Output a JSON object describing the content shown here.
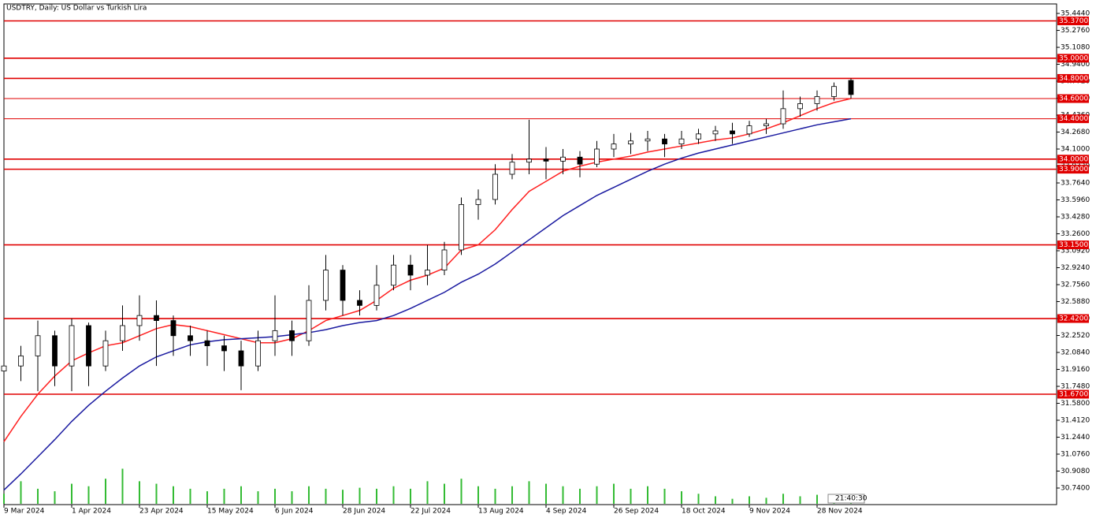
{
  "chart_data": {
    "type": "candlestick",
    "title": "USDTRY, Daily:  US Dollar vs Turkish Lira",
    "time_label": "21:40:30",
    "categories": [
      "9 Mar 2024",
      null,
      null,
      null,
      "1 Apr 2024",
      null,
      null,
      null,
      "23 Apr 2024",
      null,
      null,
      null,
      "15 May 2024",
      null,
      null,
      null,
      "6 Jun 2024",
      null,
      null,
      null,
      "28 Jun 2024",
      null,
      null,
      null,
      "22 Jul 2024",
      null,
      null,
      null,
      "13 Aug 2024",
      null,
      null,
      null,
      "4 Sep 2024",
      null,
      null,
      null,
      "26 Sep 2024",
      null,
      null,
      null,
      "18 Oct 2024",
      null,
      null,
      null,
      "9 Nov 2024",
      null,
      null,
      null,
      "28 Nov 2024",
      null,
      null
    ],
    "open": [
      31.9,
      31.95,
      32.05,
      32.25,
      31.95,
      32.35,
      31.95,
      32.2,
      32.35,
      32.45,
      32.4,
      32.25,
      32.2,
      32.15,
      32.1,
      31.95,
      32.2,
      32.3,
      32.2,
      32.6,
      32.9,
      32.6,
      32.55,
      32.75,
      32.95,
      32.85,
      32.9,
      33.1,
      33.55,
      33.6,
      33.85,
      33.97,
      34.0,
      33.98,
      34.02,
      33.95,
      34.1,
      34.15,
      34.18,
      34.2,
      34.15,
      34.2,
      34.25,
      34.28,
      34.25,
      34.33,
      34.35,
      34.5,
      34.55,
      34.62,
      34.78
    ],
    "high": [
      32.0,
      32.15,
      32.4,
      32.3,
      32.42,
      32.38,
      32.3,
      32.55,
      32.65,
      32.6,
      32.45,
      32.35,
      32.3,
      32.25,
      32.2,
      32.3,
      32.65,
      32.4,
      32.75,
      33.05,
      32.95,
      32.7,
      32.95,
      33.05,
      33.05,
      33.15,
      33.18,
      33.62,
      33.7,
      33.95,
      34.05,
      34.39,
      34.12,
      34.1,
      34.08,
      34.18,
      34.25,
      34.26,
      34.28,
      34.25,
      34.28,
      34.3,
      34.33,
      34.36,
      34.38,
      34.4,
      34.68,
      34.62,
      34.68,
      34.76,
      34.8
    ],
    "low": [
      31.85,
      31.8,
      31.7,
      31.75,
      31.7,
      31.75,
      31.9,
      32.1,
      32.2,
      31.95,
      32.05,
      32.05,
      31.95,
      31.9,
      31.71,
      31.9,
      32.05,
      32.05,
      32.15,
      32.5,
      32.45,
      32.45,
      32.5,
      32.7,
      32.7,
      32.75,
      32.85,
      33.05,
      33.4,
      33.55,
      33.8,
      33.85,
      33.8,
      33.85,
      33.82,
      33.92,
      34.02,
      34.05,
      34.08,
      34.02,
      34.1,
      34.15,
      34.18,
      34.15,
      34.22,
      34.25,
      34.3,
      34.42,
      34.48,
      34.58,
      34.6
    ],
    "close": [
      31.95,
      32.05,
      32.25,
      31.95,
      32.35,
      31.95,
      32.2,
      32.35,
      32.45,
      32.4,
      32.25,
      32.2,
      32.15,
      32.1,
      31.95,
      32.2,
      32.3,
      32.2,
      32.6,
      32.9,
      32.6,
      32.55,
      32.75,
      32.95,
      32.85,
      32.9,
      33.1,
      33.55,
      33.6,
      33.85,
      33.97,
      34.0,
      33.98,
      34.02,
      33.95,
      34.1,
      34.15,
      34.18,
      34.2,
      34.15,
      34.2,
      34.25,
      34.28,
      34.25,
      34.33,
      34.35,
      34.5,
      34.55,
      34.62,
      34.72,
      34.64
    ],
    "series": [
      {
        "color": "#ff2020",
        "values": [
          31.2,
          31.45,
          31.67,
          31.85,
          32.0,
          32.08,
          32.15,
          32.18,
          32.25,
          32.32,
          32.36,
          32.34,
          32.3,
          32.26,
          32.22,
          32.18,
          32.18,
          32.22,
          32.3,
          32.4,
          32.45,
          32.5,
          32.6,
          32.72,
          32.8,
          32.85,
          32.92,
          33.1,
          33.15,
          33.3,
          33.5,
          33.68,
          33.78,
          33.88,
          33.93,
          33.97,
          34.0,
          34.03,
          34.07,
          34.1,
          34.13,
          34.16,
          34.19,
          34.21,
          34.25,
          34.3,
          34.36,
          34.43,
          34.5,
          34.56,
          34.6
        ]
      },
      {
        "color": "#1a1aa0",
        "values": [
          30.72,
          30.88,
          31.05,
          31.22,
          31.4,
          31.56,
          31.7,
          31.83,
          31.95,
          32.04,
          32.1,
          32.16,
          32.19,
          32.21,
          32.22,
          32.23,
          32.24,
          32.26,
          32.28,
          32.31,
          32.35,
          32.38,
          32.4,
          32.45,
          32.52,
          32.6,
          32.68,
          32.78,
          32.86,
          32.96,
          33.08,
          33.2,
          33.32,
          33.44,
          33.54,
          33.64,
          33.72,
          33.8,
          33.88,
          33.95,
          34.01,
          34.06,
          34.1,
          34.14,
          34.18,
          34.22,
          34.26,
          34.3,
          34.34,
          34.37,
          34.4
        ]
      }
    ],
    "volume": [
      20,
      45,
      30,
      25,
      40,
      35,
      50,
      70,
      45,
      40,
      35,
      30,
      25,
      30,
      35,
      25,
      30,
      25,
      35,
      30,
      28,
      32,
      30,
      35,
      30,
      45,
      40,
      50,
      35,
      30,
      35,
      45,
      40,
      35,
      30,
      35,
      40,
      30,
      35,
      30,
      25,
      20,
      15,
      10,
      15,
      12,
      20,
      15,
      18,
      15,
      12
    ],
    "volume_color": "#33bb33",
    "volume_ylim": [
      0,
      110
    ],
    "levels": [
      {
        "value": 35.37,
        "label": "35.3700"
      },
      {
        "value": 35.0,
        "label": "35.0000"
      },
      {
        "value": 34.8,
        "label": "34.8000"
      },
      {
        "value": 34.6,
        "label": "34.6000"
      },
      {
        "value": 34.4,
        "label": "34.4000"
      },
      {
        "value": 34.0,
        "label": "34.0000"
      },
      {
        "value": 33.9,
        "label": "33.9000"
      },
      {
        "value": 33.15,
        "label": "33.1500"
      },
      {
        "value": 32.42,
        "label": "32.4200"
      },
      {
        "value": 31.67,
        "label": "31.6700"
      }
    ],
    "level_color": "#e00000",
    "ylim": [
      30.576,
      35.538
    ],
    "yticks": [
      {
        "value": 35.444,
        "label": "35.4440"
      },
      {
        "value": 35.276,
        "label": "35.2760"
      },
      {
        "value": 35.108,
        "label": "35.1080"
      },
      {
        "value": 34.94,
        "label": "34.9400"
      },
      {
        "value": 34.772,
        "label": "34.7720"
      },
      {
        "value": 34.604,
        "label": "34.6040"
      },
      {
        "value": 34.436,
        "label": "34.4360"
      },
      {
        "value": 34.268,
        "label": "34.2680"
      },
      {
        "value": 34.1,
        "label": "34.1000"
      },
      {
        "value": 33.932,
        "label": "33.9320"
      },
      {
        "value": 33.764,
        "label": "33.7640"
      },
      {
        "value": 33.596,
        "label": "33.5960"
      },
      {
        "value": 33.428,
        "label": "33.4280"
      },
      {
        "value": 33.26,
        "label": "33.2600"
      },
      {
        "value": 33.092,
        "label": "33.0920"
      },
      {
        "value": 32.924,
        "label": "32.9240"
      },
      {
        "value": 32.756,
        "label": "32.7560"
      },
      {
        "value": 32.588,
        "label": "32.5880"
      },
      {
        "value": 32.42,
        "label": "32.4200"
      },
      {
        "value": 32.252,
        "label": "32.2520"
      },
      {
        "value": 32.084,
        "label": "32.0840"
      },
      {
        "value": 31.916,
        "label": "31.9160"
      },
      {
        "value": 31.748,
        "label": "31.7480"
      },
      {
        "value": 31.58,
        "label": "31.5800"
      },
      {
        "value": 31.412,
        "label": "31.4120"
      },
      {
        "value": 31.244,
        "label": "31.2440"
      },
      {
        "value": 31.076,
        "label": "31.0760"
      },
      {
        "value": 30.908,
        "label": "30.9080"
      },
      {
        "value": 30.74,
        "label": "30.7400"
      }
    ]
  }
}
